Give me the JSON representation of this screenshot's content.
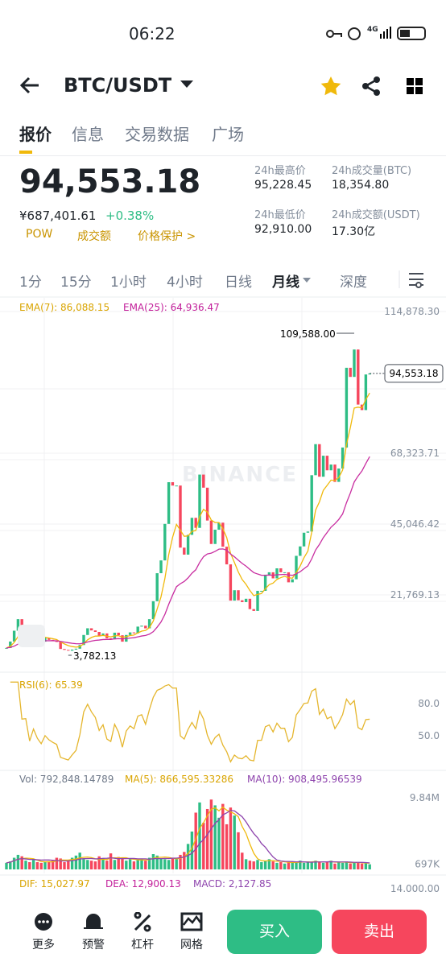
{
  "status": {
    "time": "06:22",
    "network": "4G"
  },
  "header": {
    "pair": "BTC/USDT"
  },
  "tabs": [
    "报价",
    "信息",
    "交易数据",
    "广场"
  ],
  "price": {
    "last": "94,553.18",
    "cny": "¥687,401.61",
    "change": "+0.38%",
    "tags": [
      "POW",
      "成交额",
      "价格保护 >"
    ]
  },
  "stats": [
    {
      "label": "24h最高价",
      "value": "95,228.45"
    },
    {
      "label": "24h成交量(BTC)",
      "value": "18,354.80"
    },
    {
      "label": "24h最低价",
      "value": "92,910.00"
    },
    {
      "label": "24h成交额(USDT)",
      "value": "17.30亿"
    }
  ],
  "intervals": [
    "1分",
    "15分",
    "1小时",
    "4小时",
    "日线",
    "月线",
    "深度"
  ],
  "chart_data": {
    "type": "candlestick",
    "ema_labels": [
      "EMA(7): 86,088.15",
      "EMA(25): 64,936.47"
    ],
    "watermark": "BINANCE",
    "high_label": "109,588.00",
    "low_label": "3,782.13",
    "last_label": "94,553.18",
    "ylim": [
      0,
      114878.3
    ],
    "yticks": [
      {
        "value": 114878.3,
        "label": "114,878.30"
      },
      {
        "value": 68323.71,
        "label": "68,323.71"
      },
      {
        "value": 45046.42,
        "label": "45,046.42"
      },
      {
        "value": 21769.13,
        "label": "21,769.13"
      }
    ],
    "closes": [
      4338,
      6450,
      10000,
      13800,
      10200,
      10300,
      6900,
      9200,
      7500,
      6400,
      7700,
      7000,
      6600,
      6300,
      4000,
      3700,
      3450,
      3800,
      4100,
      5300,
      8600,
      10800,
      10100,
      9600,
      8300,
      9100,
      7500,
      7200,
      9350,
      8500,
      6400,
      8600,
      9450,
      9140,
      11350,
      11650,
      10780,
      13800,
      19700,
      28900,
      33100,
      45100,
      58800,
      57700,
      57700,
      37300,
      35000,
      41500,
      47100,
      43800,
      61300,
      57000,
      46200,
      38500,
      43200,
      45500,
      37600,
      31800,
      19900,
      23300,
      20000,
      19400,
      20500,
      17100,
      16500,
      23100,
      23100,
      28400,
      29200,
      27200,
      30500,
      29200,
      29200,
      25900,
      26900,
      34600,
      37700,
      42200,
      42600,
      61100,
      71300,
      60600,
      67500,
      62700,
      64600,
      58900,
      63300,
      70200,
      96400,
      93400,
      102400,
      84300,
      82500,
      94200,
      94553
    ],
    "rsi_label": "RSI(6): 65.39",
    "rsi_ylim": [
      20,
      95
    ],
    "rsi_ticks": [
      {
        "value": 80,
        "label": "80.0"
      },
      {
        "value": 50,
        "label": "50.0"
      }
    ],
    "vol_labels": [
      "Vol: 792,848.14789",
      "MA(5): 866,595.33286",
      "MA(10): 908,495.96539"
    ],
    "vol_ylim": [
      0,
      10.95
    ],
    "vol_ticks": [
      {
        "value": 9.84,
        "label": "9.84M"
      },
      {
        "value": 0.697,
        "label": "697K"
      }
    ],
    "volumes": [
      0.9,
      1.1,
      1.6,
      2.0,
      1.8,
      1.2,
      1.0,
      1.3,
      1.0,
      0.9,
      1.0,
      1.1,
      1.2,
      1.6,
      1.5,
      1.0,
      1.1,
      1.6,
      1.9,
      2.3,
      1.4,
      1.3,
      1.2,
      1.1,
      1.8,
      1.5,
      1.2,
      2.2,
      1.3,
      1.7,
      1.6,
      1.2,
      1.4,
      1.1,
      1.3,
      1.5,
      1.2,
      1.6,
      2.1,
      1.9,
      1.5,
      1.4,
      1.3,
      1.6,
      1.4,
      2.0,
      2.4,
      3.5,
      5.2,
      7.8,
      9.2,
      6.4,
      8.3,
      9.6,
      8.8,
      7.1,
      9.0,
      6.2,
      8.5,
      7.4,
      5.1,
      2.3,
      1.4,
      1.2,
      1.1,
      1.3,
      1.0,
      1.2,
      1.4,
      1.1,
      0.9,
      1.0,
      0.8,
      1.1,
      0.9,
      1.0,
      1.2,
      0.9,
      1.1,
      1.0,
      1.2,
      1.0,
      0.9,
      1.1,
      1.2,
      0.8,
      1.0,
      0.9,
      1.1,
      0.8,
      0.9,
      1.0,
      0.8,
      0.9,
      0.7
    ],
    "macd_labels": [
      "DIF: 15,027.97",
      "DEA: 12,900.13",
      "MACD: 2,127.85"
    ],
    "macd_tick": "14,000.00"
  },
  "nav": [
    "更多",
    "预警",
    "杠杆",
    "网格"
  ],
  "buy": "买入",
  "sell": "卖出"
}
